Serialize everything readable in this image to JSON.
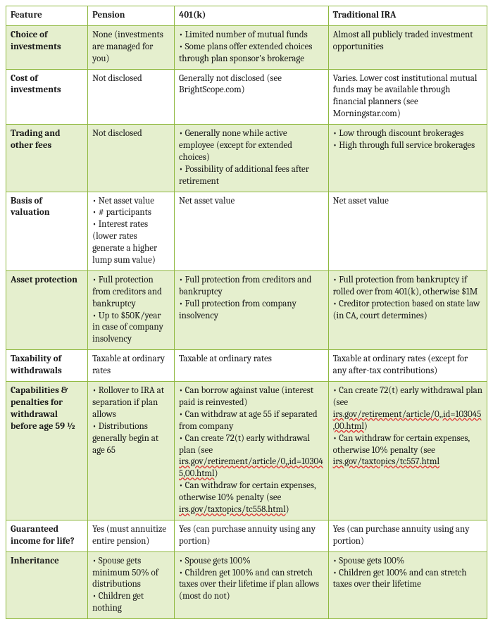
{
  "table": {
    "columns": [
      "Feature",
      "Pension",
      "401(k)",
      "Traditional IRA"
    ],
    "border_color": "#8fb83f",
    "alt_row_bg": "#e5efce",
    "font_family": "Cambria, Georgia, serif",
    "font_size_pt": 10,
    "rows": [
      {
        "feature": "Choice of investments",
        "pension": "None (investments are managed for you)",
        "k401": "• Limited number of mutual funds\n• Some plans offer extended choices through plan sponsor's brokerage",
        "ira": "Almost all publicly traded investment opportunities"
      },
      {
        "feature": "Cost of investments",
        "pension": "Not disclosed",
        "k401": "Generally not disclosed (see BrightScope.com)",
        "ira": "Varies.  Lower cost institutional mutual funds may be available through financial planners (see Morningstar.com)"
      },
      {
        "feature": "Trading and other fees",
        "pension": "Not disclosed",
        "k401": "• Generally none while active employee (except for extended choices)\n• Possibility of additional fees after retirement",
        "ira": "• Low through discount brokerages\n• High through full service brokerages"
      },
      {
        "feature": "Basis of valuation",
        "pension": "• Net asset value\n• # participants\n• Interest rates (lower rates generate a higher lump sum value)",
        "k401": "Net asset value",
        "ira": "Net asset value"
      },
      {
        "feature": "Asset protection",
        "pension": "• Full protection from creditors and bankruptcy\n• Up to $50K/year in case of company insolvency",
        "k401": "• Full protection from creditors and bankruptcy\n• Full protection from company insolvency",
        "ira": "• Full protection from bankruptcy if rolled over from 401(k), otherwise $1M\n• Creditor protection based on state law (in CA, court determines)"
      },
      {
        "feature": "Taxability of withdrawals",
        "pension": "Taxable at ordinary rates",
        "k401": "Taxable at ordinary rates",
        "ira": "Taxable at ordinary rates (except for any after-tax contributions)"
      },
      {
        "feature": "Capabilities & penalties for withdrawal before age 59 ½",
        "pension": "• Rollover to IRA at separation if plan allows\n• Distributions generally begin at age 65",
        "k401": "• Can borrow against value (interest paid is reinvested)\n• Can withdraw at age 55 if separated from company\n• Can create 72(t) early withdrawal plan (see irs.gov/retirement/article/0,,id=103045,00.html)\n• Can withdraw for certain expenses, otherwise 10% penalty  (see irs.gov/taxtopics/tc558.html)",
        "ira": "• Can create 72(t) early withdrawal plan (see irs.gov/retirement/article/0,,id=103045,00.html)\n• Can withdraw for certain expenses, otherwise 10% penalty (see irs.gov/taxtopics/tc557.html"
      },
      {
        "feature": "Guaranteed income for life?",
        "pension": "Yes (must annuitize entire pension)",
        "k401": "Yes (can purchase annuity using any portion)",
        "ira": "Yes (can purchase annuity using any portion)"
      },
      {
        "feature": "Inheritance",
        "pension": "• Spouse gets minimum 50% of distributions\n• Children get nothing",
        "k401": "• Spouse gets 100%\n• Children get 100% and can stretch taxes over their lifetime if plan allows (most do not)",
        "ira": "• Spouse gets 100%\n• Children get 100% and can stretch taxes over their lifetime"
      }
    ]
  }
}
